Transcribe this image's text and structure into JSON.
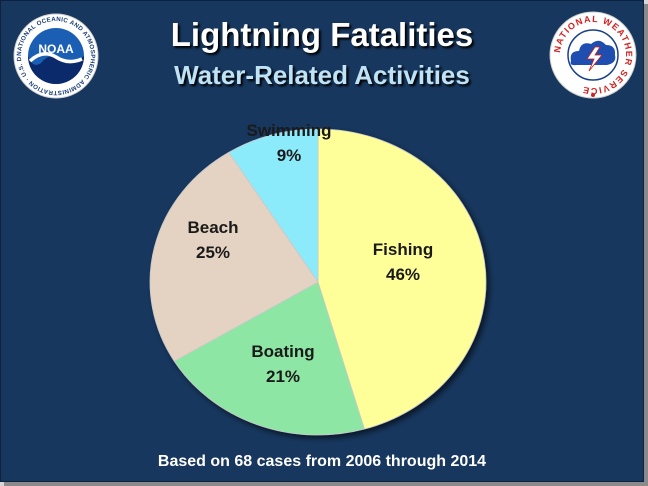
{
  "title": "Lightning Fatalities",
  "subtitle": "Water-Related Activities",
  "footnote": "Based on 68 cases from 2006 through 2014",
  "logos": {
    "left": {
      "text": "NOAA",
      "ring_text": "NATIONAL OCEANIC AND ATMOSPHERIC ADMINISTRATION · U.S. DEPARTMENT OF COMMERCE"
    },
    "right": {
      "ring_text": "NATIONAL WEATHER SERVICE"
    }
  },
  "colors": {
    "background": "#17375e",
    "title": "#ffffff",
    "subtitle": "#bfe3f5",
    "fishing": "#ffff99",
    "boating": "#8ee6a4",
    "beach": "#e4d2c2",
    "swimming": "#8cebfb"
  },
  "chart_data": {
    "type": "pie",
    "title": "Lightning Fatalities",
    "subtitle": "Water-Related Activities",
    "start": "12 o'clock",
    "direction": "clockwise",
    "slices": [
      {
        "label": "Fishing",
        "value": 46,
        "value_label": "46%",
        "color": "#ffff99"
      },
      {
        "label": "Boating",
        "value": 21,
        "value_label": "21%",
        "color": "#8ee6a4"
      },
      {
        "label": "Beach",
        "value": 25,
        "value_label": "25%",
        "color": "#e4d2c2"
      },
      {
        "label": "Swimming",
        "value": 9,
        "value_label": "9%",
        "color": "#8cebfb"
      }
    ]
  }
}
